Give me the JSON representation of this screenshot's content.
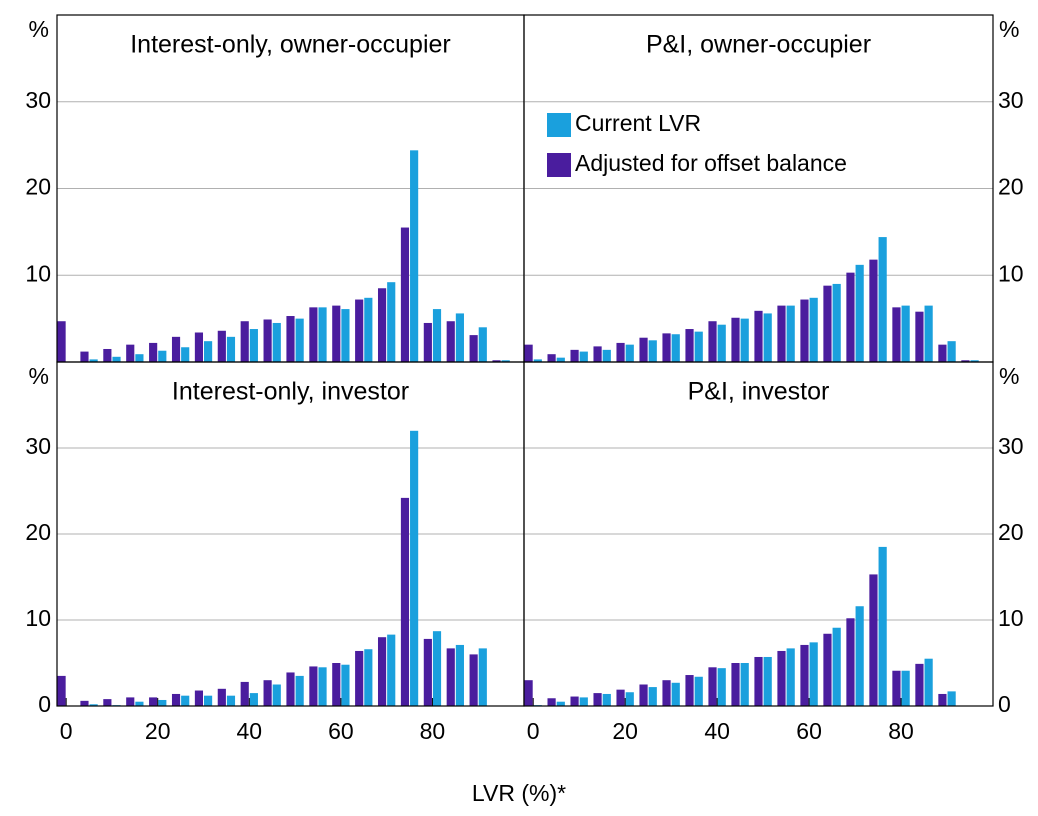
{
  "xlabel": "LVR (%)*",
  "chart_data": [
    {
      "type": "bar",
      "title": "Interest-only, owner-occupier",
      "y_unit": "%",
      "yaxis_side": "left",
      "x": [
        0,
        5,
        10,
        15,
        20,
        25,
        30,
        35,
        40,
        45,
        50,
        55,
        60,
        65,
        70,
        75,
        80,
        85,
        90,
        95
      ],
      "series": [
        {
          "color": "#1aa0dd",
          "values": [
            0,
            0.3,
            0.6,
            0.9,
            1.3,
            1.7,
            2.4,
            2.9,
            3.8,
            4.5,
            5.0,
            6.3,
            6.1,
            7.4,
            9.2,
            24.4,
            6.1,
            5.6,
            4.0,
            0.2
          ]
        },
        {
          "color": "#4a1d9e",
          "values": [
            4.7,
            1.2,
            1.5,
            2.0,
            2.2,
            2.9,
            3.4,
            3.6,
            4.7,
            4.9,
            5.3,
            6.3,
            6.5,
            7.2,
            8.5,
            15.5,
            4.5,
            4.7,
            3.1,
            0.2
          ]
        }
      ],
      "xlim": [
        -2,
        100
      ],
      "ylim": [
        0,
        40
      ],
      "yticks": [
        10,
        20,
        30
      ],
      "grid": true
    },
    {
      "type": "bar",
      "title": "P&I, owner-occupier",
      "y_unit": "%",
      "yaxis_side": "right",
      "legend": "upper left",
      "x": [
        0,
        5,
        10,
        15,
        20,
        25,
        30,
        35,
        40,
        45,
        50,
        55,
        60,
        65,
        70,
        75,
        80,
        85,
        90,
        95
      ],
      "series": [
        {
          "name": "Current LVR",
          "color": "#1aa0dd",
          "values": [
            0.3,
            0.5,
            1.2,
            1.4,
            2.0,
            2.5,
            3.2,
            3.5,
            4.3,
            5.0,
            5.6,
            6.5,
            7.4,
            9.0,
            11.2,
            14.4,
            6.5,
            6.5,
            2.4,
            0.2
          ]
        },
        {
          "name": "Adjusted for offset balance",
          "color": "#4a1d9e",
          "values": [
            2.0,
            0.9,
            1.4,
            1.8,
            2.2,
            2.8,
            3.3,
            3.8,
            4.7,
            5.1,
            5.9,
            6.5,
            7.2,
            8.8,
            10.3,
            11.8,
            6.3,
            5.8,
            2.0,
            0.2
          ]
        }
      ],
      "xlim": [
        -2,
        100
      ],
      "ylim": [
        0,
        40
      ],
      "yticks": [
        10,
        20,
        30
      ],
      "grid": true
    },
    {
      "type": "bar",
      "title": "Interest-only, investor",
      "y_unit": "%",
      "yaxis_side": "left",
      "x": [
        0,
        5,
        10,
        15,
        20,
        25,
        30,
        35,
        40,
        45,
        50,
        55,
        60,
        65,
        70,
        75,
        80,
        85,
        90,
        95
      ],
      "series": [
        {
          "color": "#1aa0dd",
          "values": [
            0,
            0.2,
            0.1,
            0.5,
            0.7,
            1.2,
            1.2,
            1.2,
            1.5,
            2.5,
            3.5,
            4.5,
            4.8,
            6.6,
            8.3,
            32.0,
            8.7,
            7.1,
            6.7,
            0
          ]
        },
        {
          "color": "#4a1d9e",
          "values": [
            3.5,
            0.6,
            0.8,
            1.0,
            1.0,
            1.4,
            1.8,
            2.0,
            2.8,
            3.0,
            3.9,
            4.6,
            5.0,
            6.4,
            8.0,
            24.2,
            7.8,
            6.7,
            6.0,
            0
          ]
        }
      ],
      "xlim": [
        -2,
        100
      ],
      "ylim": [
        0,
        40
      ],
      "yticks": [
        0,
        10,
        20,
        30
      ],
      "xticks": [
        0,
        20,
        40,
        60,
        80
      ],
      "grid": true
    },
    {
      "type": "bar",
      "title": "P&I, investor",
      "y_unit": "%",
      "yaxis_side": "right",
      "x": [
        0,
        5,
        10,
        15,
        20,
        25,
        30,
        35,
        40,
        45,
        50,
        55,
        60,
        65,
        70,
        75,
        80,
        85,
        90,
        95
      ],
      "series": [
        {
          "color": "#1aa0dd",
          "values": [
            0.1,
            0.5,
            1.0,
            1.4,
            1.6,
            2.2,
            2.7,
            3.4,
            4.4,
            5.0,
            5.7,
            6.7,
            7.4,
            9.1,
            11.6,
            18.5,
            4.1,
            5.5,
            1.7,
            0
          ]
        },
        {
          "color": "#4a1d9e",
          "values": [
            3.0,
            0.9,
            1.1,
            1.5,
            1.9,
            2.5,
            3.0,
            3.6,
            4.5,
            5.0,
            5.7,
            6.4,
            7.1,
            8.4,
            10.2,
            15.3,
            4.1,
            4.9,
            1.4,
            0
          ]
        }
      ],
      "xlim": [
        -2,
        100
      ],
      "ylim": [
        0,
        40
      ],
      "yticks": [
        0,
        10,
        20,
        30
      ],
      "xticks": [
        0,
        20,
        40,
        60,
        80
      ],
      "grid": true
    }
  ]
}
